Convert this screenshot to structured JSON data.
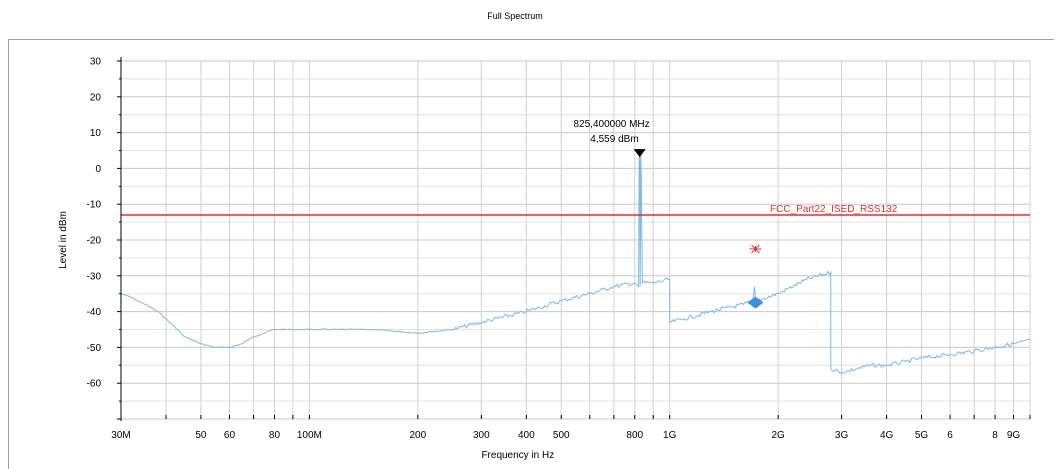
{
  "chart_data": {
    "type": "line",
    "title": "Full Spectrum",
    "xlabel": "Frequency in Hz",
    "ylabel": "Level in dBm",
    "xscale": "log",
    "xlim": [
      30000000,
      10000000000
    ],
    "ylim": [
      -70,
      30
    ],
    "grid": true,
    "y_ticks": [
      30,
      20,
      10,
      0,
      -10,
      -20,
      -30,
      -40,
      -50,
      -60
    ],
    "x_ticks": [
      {
        "value": 30000000,
        "label": "30M"
      },
      {
        "value": 50000000,
        "label": "50"
      },
      {
        "value": 60000000,
        "label": "60"
      },
      {
        "value": 80000000,
        "label": "80"
      },
      {
        "value": 100000000,
        "label": "100M"
      },
      {
        "value": 200000000,
        "label": "200"
      },
      {
        "value": 300000000,
        "label": "300"
      },
      {
        "value": 400000000,
        "label": "400"
      },
      {
        "value": 500000000,
        "label": "500"
      },
      {
        "value": 800000000,
        "label": "800"
      },
      {
        "value": 1000000000,
        "label": "1G"
      },
      {
        "value": 2000000000,
        "label": "2G"
      },
      {
        "value": 3000000000,
        "label": "3G"
      },
      {
        "value": 4000000000,
        "label": "4G"
      },
      {
        "value": 5000000000,
        "label": "5G"
      },
      {
        "value": 6000000000,
        "label": "6"
      },
      {
        "value": 8000000000,
        "label": "8"
      },
      {
        "value": 9000000000,
        "label": "9G"
      }
    ],
    "x_minor_ticks": [
      40000000,
      70000000,
      90000000,
      600000000,
      700000000,
      900000000,
      7000000000,
      10000000000
    ],
    "series": [
      {
        "color": "#7db9e8",
        "x": [
          30000000,
          32000000,
          35000000,
          38000000,
          42000000,
          45000000,
          50000000,
          55000000,
          60000000,
          65000000,
          70000000,
          80000000,
          90000000,
          100000000,
          120000000,
          150000000,
          200000000,
          250000000,
          300000000,
          400000000,
          500000000,
          600000000,
          700000000,
          800000000,
          820000000,
          823000000,
          825400000,
          828000000,
          832000000,
          840000000,
          900000000,
          1000000000,
          1000000000,
          1100000000,
          1300000000,
          1600000000,
          1700000000,
          1720000000,
          1730000000,
          1740000000,
          2000000000,
          2400000000,
          2800000000,
          2800000000,
          3000000000,
          3300000000,
          3600000000,
          4000000000,
          4500000000,
          5000000000,
          6000000000,
          7000000000,
          8000000000,
          9000000000,
          10000000000
        ],
        "y": [
          -35,
          -36,
          -38,
          -40,
          -44,
          -47,
          -49,
          -50,
          -50,
          -49,
          -47,
          -45,
          -45,
          -45,
          -45,
          -45,
          -46,
          -45,
          -43,
          -40,
          -37,
          -35,
          -33,
          -32,
          -33,
          5,
          5,
          -33,
          5,
          -32,
          -32,
          -31,
          -43,
          -42,
          -40,
          -38,
          -37,
          -33,
          -37,
          -37,
          -35,
          -31,
          -29,
          -56,
          -57,
          -56,
          -55,
          -55,
          -54,
          -53,
          -52,
          -51,
          -50,
          -49,
          -48
        ]
      }
    ],
    "limit_line": {
      "label": "FCC_Part22_ISED_RSS132",
      "value": -13,
      "color": "#e03030"
    },
    "marker": {
      "label_line1": "825,400000 MHz",
      "label_line2": "4,559 dBm",
      "x": 825400000,
      "y": 4.559
    },
    "points": [
      {
        "name": "red star",
        "x": 1730000000,
        "y": -22.5,
        "color": "#e03030"
      },
      {
        "name": "blue diamond",
        "x": 1730000000,
        "y": -37.5,
        "color": "#3b8ee0"
      }
    ]
  }
}
